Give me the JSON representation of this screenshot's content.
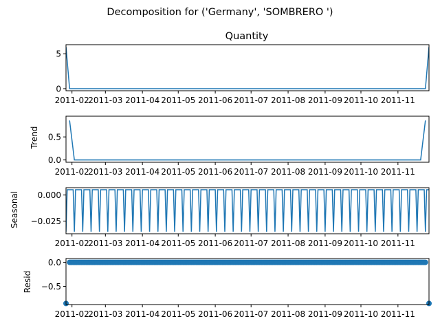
{
  "figure": {
    "suptitle": "Decomposition for ('Germany', 'SOMBRERO ')",
    "line_color": "#1f77b4",
    "date_ticks": [
      "2011-02",
      "2011-03",
      "2011-04",
      "2011-05",
      "2011-06",
      "2011-07",
      "2011-08",
      "2011-09",
      "2011-10",
      "2011-11"
    ]
  },
  "chart_data": [
    {
      "type": "line",
      "title": "Quantity",
      "ylabel": "",
      "xlim": [
        "2011-01-27",
        "2011-11-27"
      ],
      "ylim": [
        -0.3,
        6.3
      ],
      "yticks": [
        0,
        5
      ],
      "ytick_labels": [
        "0",
        "5"
      ],
      "series": [
        {
          "x": [
            "2011-01-27",
            "2011-01-30",
            "2011-11-24",
            "2011-11-27"
          ],
          "values": [
            6,
            0,
            0,
            6
          ]
        }
      ]
    },
    {
      "type": "line",
      "title": "",
      "ylabel": "Trend",
      "xlim": [
        "2011-01-27",
        "2011-11-27"
      ],
      "ylim": [
        -0.05,
        0.95
      ],
      "yticks": [
        0,
        0.5
      ],
      "ytick_labels": [
        "0.0",
        "0.5"
      ],
      "series": [
        {
          "x": [
            "2011-01-30",
            "2011-02-03",
            "2011-11-20",
            "2011-11-24"
          ],
          "values": [
            0.857,
            0,
            0,
            0.857
          ]
        }
      ]
    },
    {
      "type": "line",
      "title": "",
      "ylabel": "Seasonal",
      "xlim": [
        "2011-01-27",
        "2011-11-27"
      ],
      "ylim": [
        -0.037,
        0.007
      ],
      "yticks": [
        0,
        -0.025
      ],
      "ytick_labels": [
        "0.000",
        "−0.025"
      ],
      "pattern": {
        "start": "2011-01-27",
        "end": "2011-11-27",
        "period_days": 7,
        "high": 0.005,
        "low": -0.035,
        "low_days": [
          0
        ]
      }
    },
    {
      "type": "scatter",
      "title": "",
      "ylabel": "Resid",
      "xlim": [
        "2011-01-27",
        "2011-11-27"
      ],
      "ylim": [
        -0.88,
        0.08
      ],
      "yticks": [
        0,
        -0.5
      ],
      "ytick_labels": [
        "0.0",
        "−0.5"
      ],
      "baseline": {
        "start": "2011-01-30",
        "end": "2011-11-24",
        "value": 0
      },
      "outliers": [
        {
          "x": "2011-01-27",
          "y": -0.857
        },
        {
          "x": "2011-11-27",
          "y": -0.857
        }
      ]
    }
  ]
}
